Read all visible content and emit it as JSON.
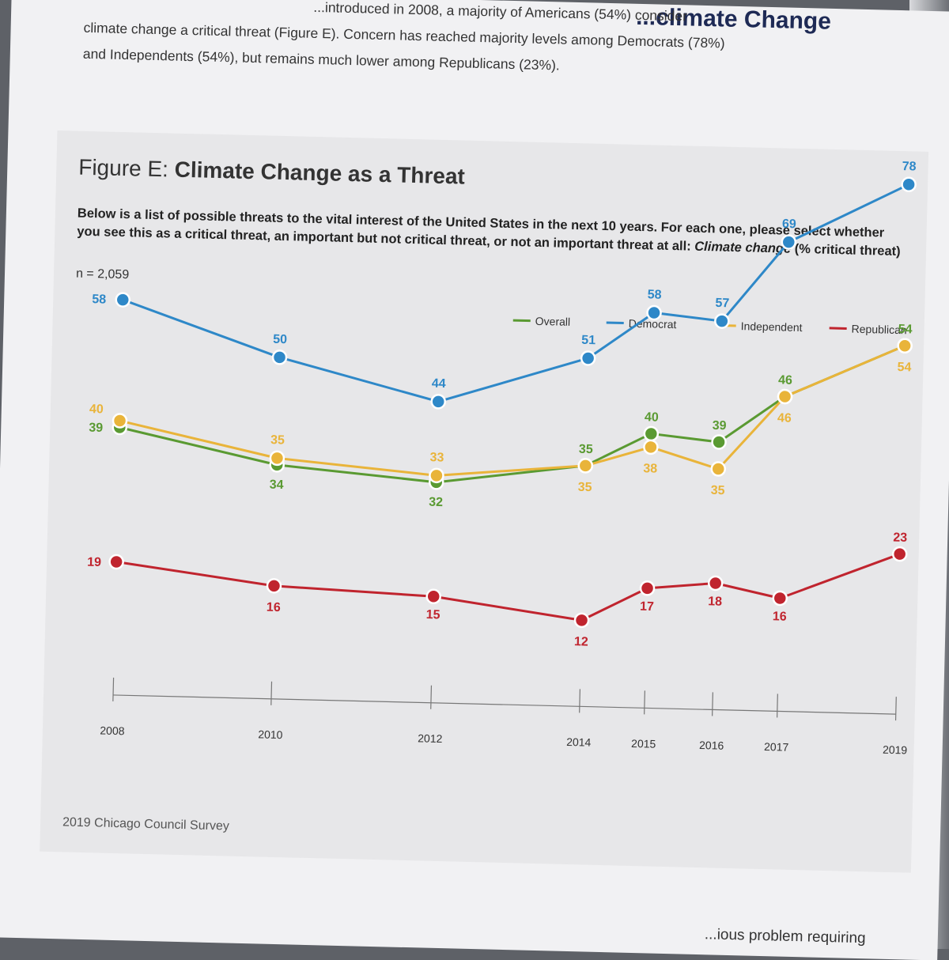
{
  "header": {
    "title": "...climate Change",
    "intro_line1": "...introduced in 2008, a majority of Americans (54%) consider",
    "intro_line2": "climate change a critical threat (Figure E). Concern has reached majority levels among Democrats (78%)",
    "intro_line3": "and Independents (54%), but remains much lower among Republicans (23%)."
  },
  "figure": {
    "label": "Figure E:",
    "title": "Climate Change as a Threat",
    "question_a": "Below is a list of possible threats to the vital interest of the United States in the next 10 years. For each one, please select whether you see this as a critical threat, an important but not critical threat, or not an important threat at all: ",
    "question_b": "Climate change",
    "question_c": " (% critical threat)",
    "n": "n = 2,059",
    "source": "2019 Chicago Council Survey"
  },
  "footer_fragment": "...ious problem requiring",
  "chart_data": {
    "type": "line",
    "x": [
      "2008",
      "2010",
      "2012",
      "2014",
      "2015",
      "2016",
      "2017",
      "2019"
    ],
    "series": [
      {
        "name": "Overall",
        "color": "#5a9a32",
        "values": [
          39,
          34,
          32,
          35,
          40,
          39,
          46,
          54
        ]
      },
      {
        "name": "Democrat",
        "color": "#2e88c8",
        "values": [
          58,
          50,
          44,
          51,
          58,
          57,
          69,
          78
        ]
      },
      {
        "name": "Independent",
        "color": "#e9b43a",
        "values": [
          40,
          35,
          33,
          35,
          38,
          35,
          46,
          54
        ]
      },
      {
        "name": "Republican",
        "color": "#c0242e",
        "values": [
          19,
          16,
          15,
          12,
          17,
          18,
          16,
          23
        ]
      }
    ],
    "legend_position": "top-right",
    "grid": false
  }
}
